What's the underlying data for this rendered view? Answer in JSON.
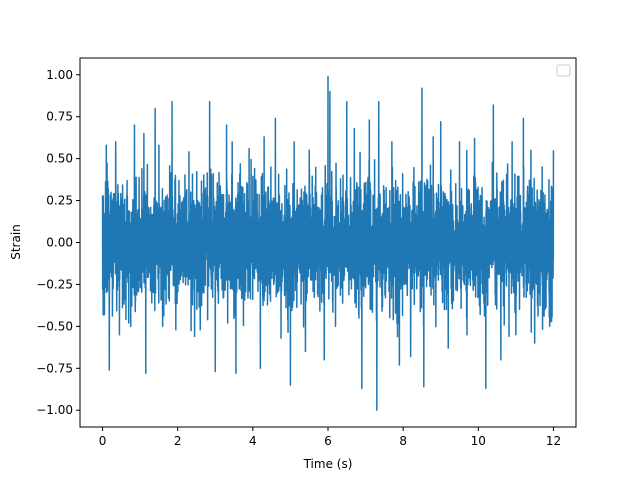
{
  "chart_data": {
    "type": "line",
    "title": "",
    "xlabel": "Time (s)",
    "ylabel": "Strain",
    "xlim": [
      -0.6,
      12.6
    ],
    "ylim": [
      -1.1,
      1.1
    ],
    "x_ticks": [
      0,
      2,
      4,
      6,
      8,
      10,
      12
    ],
    "x_tick_labels": [
      "0",
      "2",
      "4",
      "6",
      "8",
      "10",
      "12"
    ],
    "y_ticks": [
      -1.0,
      -0.75,
      -0.5,
      -0.25,
      0.0,
      0.25,
      0.5,
      0.75,
      1.0
    ],
    "y_tick_labels": [
      "−1.00",
      "−0.75",
      "−0.50",
      "−0.25",
      "0.00",
      "0.25",
      "0.50",
      "0.75",
      "1.00"
    ],
    "grid": false,
    "legend": {
      "placement": "top-right",
      "entries": []
    },
    "series": [
      {
        "color": "#1f77b4",
        "x_range": [
          0,
          12
        ],
        "typical_band": [
          -0.55,
          0.55
        ],
        "values": [
          {
            "x": 0.0,
            "y": 0.71
          },
          {
            "x": 0.05,
            "y": -0.43
          },
          {
            "x": 0.1,
            "y": 0.58
          },
          {
            "x": 0.18,
            "y": -0.76
          },
          {
            "x": 0.35,
            "y": 0.6
          },
          {
            "x": 0.45,
            "y": -0.55
          },
          {
            "x": 0.75,
            "y": -0.5
          },
          {
            "x": 0.85,
            "y": 0.7
          },
          {
            "x": 1.1,
            "y": 0.65
          },
          {
            "x": 1.15,
            "y": -0.78
          },
          {
            "x": 1.4,
            "y": 0.8
          },
          {
            "x": 1.5,
            "y": 0.58
          },
          {
            "x": 1.6,
            "y": -0.5
          },
          {
            "x": 1.85,
            "y": 0.84
          },
          {
            "x": 1.95,
            "y": -0.52
          },
          {
            "x": 2.3,
            "y": 0.54
          },
          {
            "x": 2.45,
            "y": -0.56
          },
          {
            "x": 2.6,
            "y": -0.52
          },
          {
            "x": 2.85,
            "y": 0.84
          },
          {
            "x": 3.0,
            "y": -0.77
          },
          {
            "x": 3.3,
            "y": 0.7
          },
          {
            "x": 3.45,
            "y": 0.6
          },
          {
            "x": 3.55,
            "y": -0.78
          },
          {
            "x": 3.9,
            "y": 0.56
          },
          {
            "x": 4.2,
            "y": -0.75
          },
          {
            "x": 4.3,
            "y": 0.63
          },
          {
            "x": 4.6,
            "y": 0.74
          },
          {
            "x": 4.75,
            "y": -0.57
          },
          {
            "x": 5.0,
            "y": -0.85
          },
          {
            "x": 5.1,
            "y": 0.6
          },
          {
            "x": 5.4,
            "y": -0.65
          },
          {
            "x": 5.5,
            "y": 0.55
          },
          {
            "x": 5.9,
            "y": -0.7
          },
          {
            "x": 6.0,
            "y": 0.99
          },
          {
            "x": 6.05,
            "y": 0.9
          },
          {
            "x": 6.2,
            "y": -0.5
          },
          {
            "x": 6.5,
            "y": 0.84
          },
          {
            "x": 6.7,
            "y": 0.68
          },
          {
            "x": 6.9,
            "y": -0.87
          },
          {
            "x": 7.1,
            "y": 0.73
          },
          {
            "x": 7.3,
            "y": -1.0
          },
          {
            "x": 7.35,
            "y": 0.84
          },
          {
            "x": 7.7,
            "y": 0.6
          },
          {
            "x": 7.9,
            "y": -0.73
          },
          {
            "x": 8.2,
            "y": -0.68
          },
          {
            "x": 8.5,
            "y": 0.92
          },
          {
            "x": 8.55,
            "y": -0.86
          },
          {
            "x": 8.8,
            "y": 0.63
          },
          {
            "x": 9.0,
            "y": 0.72
          },
          {
            "x": 9.2,
            "y": -0.63
          },
          {
            "x": 9.5,
            "y": 0.6
          },
          {
            "x": 9.7,
            "y": -0.55
          },
          {
            "x": 9.9,
            "y": 0.62
          },
          {
            "x": 10.2,
            "y": -0.87
          },
          {
            "x": 10.4,
            "y": 0.82
          },
          {
            "x": 10.6,
            "y": -0.7
          },
          {
            "x": 10.9,
            "y": 0.6
          },
          {
            "x": 11.0,
            "y": -0.55
          },
          {
            "x": 11.2,
            "y": 0.74
          },
          {
            "x": 11.4,
            "y": 0.55
          },
          {
            "x": 11.5,
            "y": -0.6
          },
          {
            "x": 11.7,
            "y": 0.45
          },
          {
            "x": 11.9,
            "y": -0.5
          },
          {
            "x": 12.0,
            "y": 0.55
          }
        ]
      }
    ]
  }
}
